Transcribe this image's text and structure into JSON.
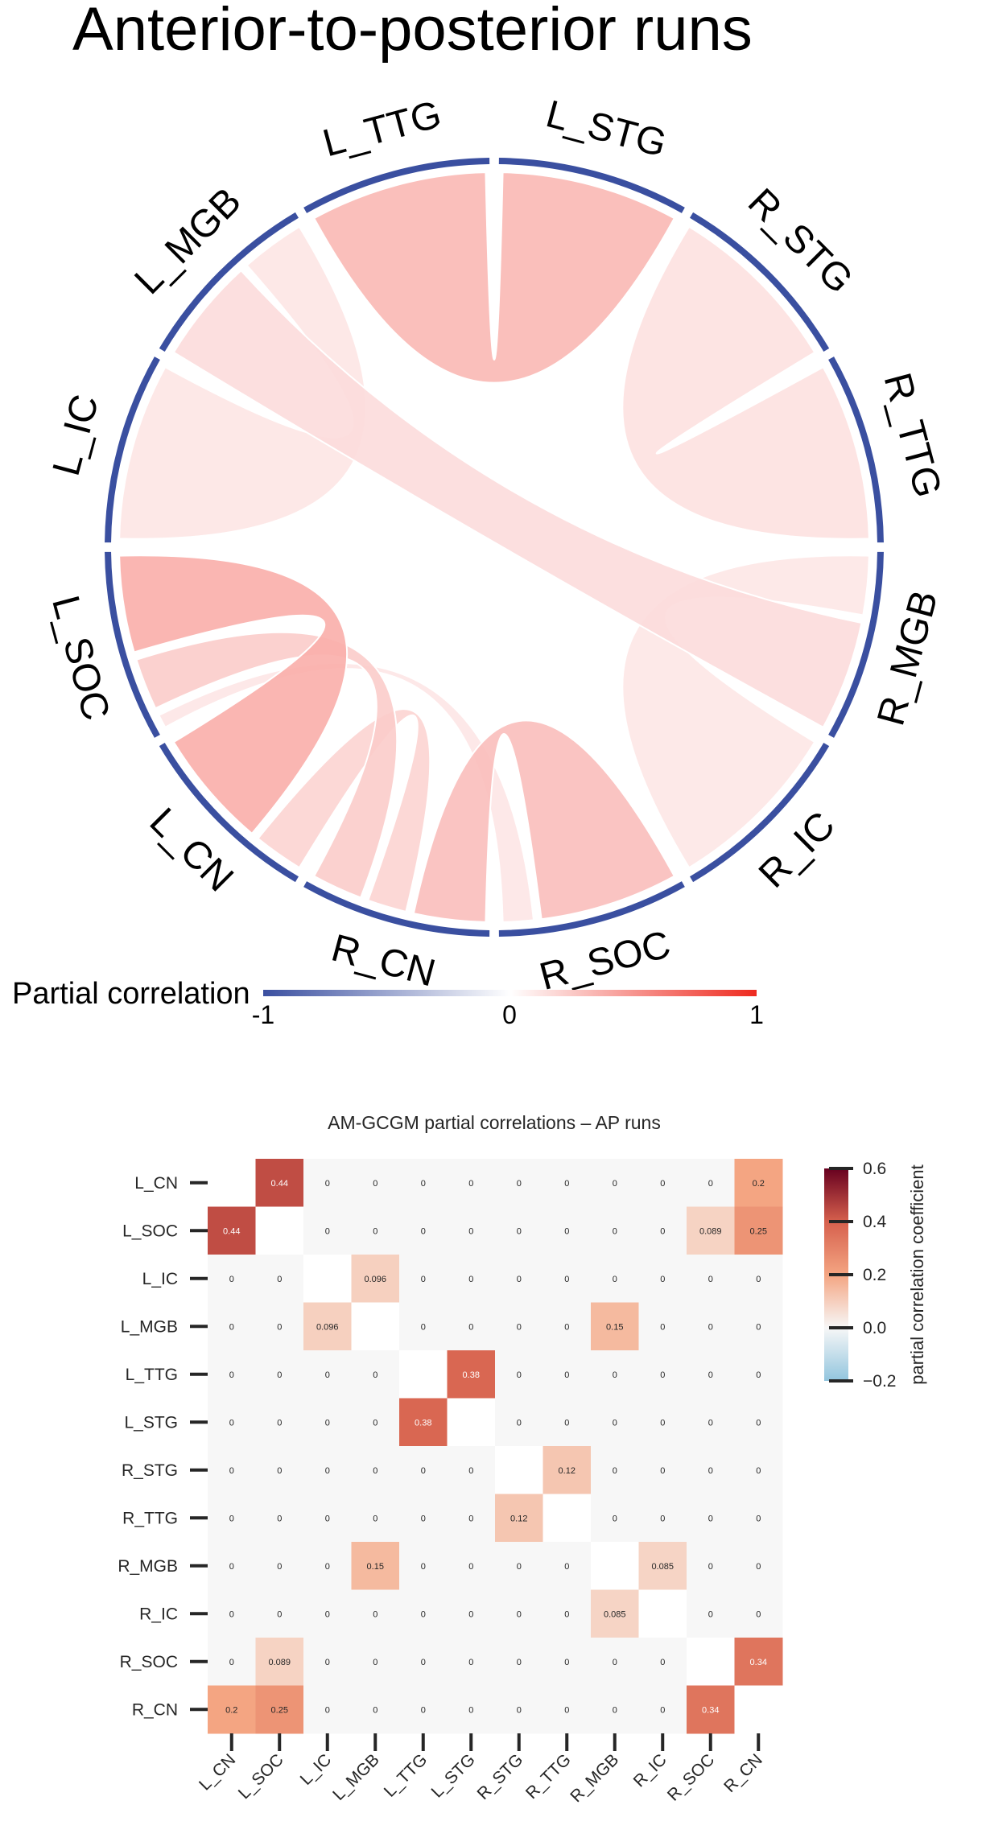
{
  "chart_data": [
    {
      "type": "chord",
      "title": "Anterior-to-posterior runs",
      "nodes": [
        "L_STG",
        "R_STG",
        "R_TTG",
        "R_MGB",
        "R_IC",
        "R_SOC",
        "R_CN",
        "L_CN",
        "L_SOC",
        "L_IC",
        "L_MGB",
        "L_TTG"
      ],
      "colorbar": {
        "label": "Partial correlation",
        "ticks": [
          "-1",
          "0",
          "1"
        ],
        "range": [
          -1,
          1
        ],
        "colors": [
          "#3a4fa0",
          "#ffffff",
          "#ee2a1f"
        ]
      }
    },
    {
      "type": "heatmap",
      "title": "AM-GCGM partial correlations – AP runs",
      "rows": [
        "L_CN",
        "L_SOC",
        "L_IC",
        "L_MGB",
        "L_TTG",
        "L_STG",
        "R_STG",
        "R_TTG",
        "R_MGB",
        "R_IC",
        "R_SOC",
        "R_CN"
      ],
      "cols": [
        "L_CN",
        "L_SOC",
        "L_IC",
        "L_MGB",
        "L_TTG",
        "L_STG",
        "R_STG",
        "R_TTG",
        "R_MGB",
        "R_IC",
        "R_SOC",
        "R_CN"
      ],
      "labels": [
        [
          "",
          "0.44",
          "0",
          "0",
          "0",
          "0",
          "0",
          "0",
          "0",
          "0",
          "0",
          "0.2"
        ],
        [
          "0.44",
          "",
          "0",
          "0",
          "0",
          "0",
          "0",
          "0",
          "0",
          "0",
          "0.089",
          "0.25"
        ],
        [
          "0",
          "0",
          "",
          "0.096",
          "0",
          "0",
          "0",
          "0",
          "0",
          "0",
          "0",
          "0"
        ],
        [
          "0",
          "0",
          "0.096",
          "",
          "0",
          "0",
          "0",
          "0",
          "0.15",
          "0",
          "0",
          "0"
        ],
        [
          "0",
          "0",
          "0",
          "0",
          "",
          "0.38",
          "0",
          "0",
          "0",
          "0",
          "0",
          "0"
        ],
        [
          "0",
          "0",
          "0",
          "0",
          "0.38",
          "",
          "0",
          "0",
          "0",
          "0",
          "0",
          "0"
        ],
        [
          "0",
          "0",
          "0",
          "0",
          "0",
          "0",
          "",
          "0.12",
          "0",
          "0",
          "0",
          "0"
        ],
        [
          "0",
          "0",
          "0",
          "0",
          "0",
          "0",
          "0.12",
          "",
          "0",
          "0",
          "0",
          "0"
        ],
        [
          "0",
          "0",
          "0",
          "0.15",
          "0",
          "0",
          "0",
          "0",
          "",
          "0.085",
          "0",
          "0"
        ],
        [
          "0",
          "0",
          "0",
          "0",
          "0",
          "0",
          "0",
          "0",
          "0.085",
          "",
          "0",
          "0"
        ],
        [
          "0",
          "0.089",
          "0",
          "0",
          "0",
          "0",
          "0",
          "0",
          "0",
          "0",
          "",
          "0.34"
        ],
        [
          "0.2",
          "0.25",
          "0",
          "0",
          "0",
          "0",
          "0",
          "0",
          "0",
          "0",
          "0.34",
          ""
        ]
      ],
      "colorbar": {
        "label": "partial correlation coefficient",
        "ticks": [
          "0.6",
          "0.4",
          "0.2",
          "0.0",
          "−0.2"
        ],
        "range": [
          -0.2,
          0.6
        ]
      }
    }
  ]
}
